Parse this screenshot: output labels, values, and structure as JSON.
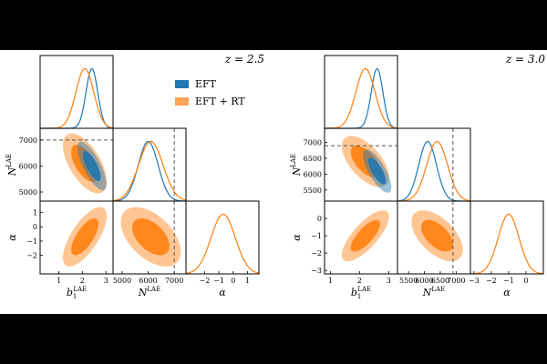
{
  "colors": {
    "eft": "#1f77b4",
    "eft_rt": "#ff7f0e",
    "truth_line": "#555555",
    "background_band": "#000000"
  },
  "legend": {
    "items": [
      {
        "label": "EFT",
        "color": "#1f77b4"
      },
      {
        "label": "EFT + RT",
        "color": "#ff7f0e"
      }
    ]
  },
  "chart_data": [
    {
      "type": "corner",
      "title": "z = 2.5",
      "parameters": [
        {
          "label": "b1LAE",
          "display": "b",
          "sub": "1",
          "sup": "LAE",
          "range": [
            0.2,
            3.3
          ],
          "ticks": [
            1,
            2,
            3
          ],
          "truth": null
        },
        {
          "label": "NLAE",
          "display": "N",
          "sub": "",
          "sup": "LAE",
          "range": [
            4650,
            7450
          ],
          "ticks": [
            5000,
            6000,
            7000
          ],
          "truth": 7000
        },
        {
          "label": "alpha",
          "display": "α",
          "sub": "",
          "sup": "",
          "range": [
            -3.3,
            1.8
          ],
          "ticks": [
            -2,
            -1,
            0,
            1
          ],
          "truth": null
        }
      ],
      "series": [
        {
          "name": "EFT",
          "means": [
            2.4,
            6000,
            null
          ],
          "sigmas": [
            0.25,
            380,
            null
          ],
          "rho": {
            "0-1": -0.75
          }
        },
        {
          "name": "EFT + RT",
          "means": [
            2.1,
            6100,
            -0.7
          ],
          "sigmas": [
            0.38,
            470,
            0.85
          ],
          "rho": {
            "0-1": -0.6,
            "0-2": 0.7,
            "1-2": -0.5
          }
        }
      ]
    },
    {
      "type": "corner",
      "title": "z = 3.0",
      "parameters": [
        {
          "label": "b1LAE",
          "display": "b",
          "sub": "1",
          "sup": "LAE",
          "range": [
            0.8,
            3.3
          ],
          "ticks": [
            1,
            2,
            3
          ],
          "truth": null
        },
        {
          "label": "NLAE",
          "display": "N",
          "sub": "",
          "sup": "LAE",
          "range": [
            5150,
            7450
          ],
          "ticks": [
            5500,
            6000,
            6500,
            7000
          ],
          "truth": 6900
        },
        {
          "label": "alpha",
          "display": "α",
          "sub": "",
          "sup": "",
          "range": [
            -3.2,
            1.0
          ],
          "ticks": [
            -3,
            -2,
            -1,
            0
          ],
          "truth": null
        }
      ],
      "series": [
        {
          "name": "EFT",
          "means": [
            2.6,
            6100,
            null
          ],
          "sigmas": [
            0.2,
            280,
            null
          ],
          "rho": {
            "0-1": -0.75
          }
        },
        {
          "name": "EFT + RT",
          "means": [
            2.2,
            6400,
            -1.0
          ],
          "sigmas": [
            0.33,
            330,
            0.6
          ],
          "rho": {
            "0-1": -0.6,
            "0-2": 0.75,
            "1-2": -0.55
          }
        }
      ]
    }
  ]
}
